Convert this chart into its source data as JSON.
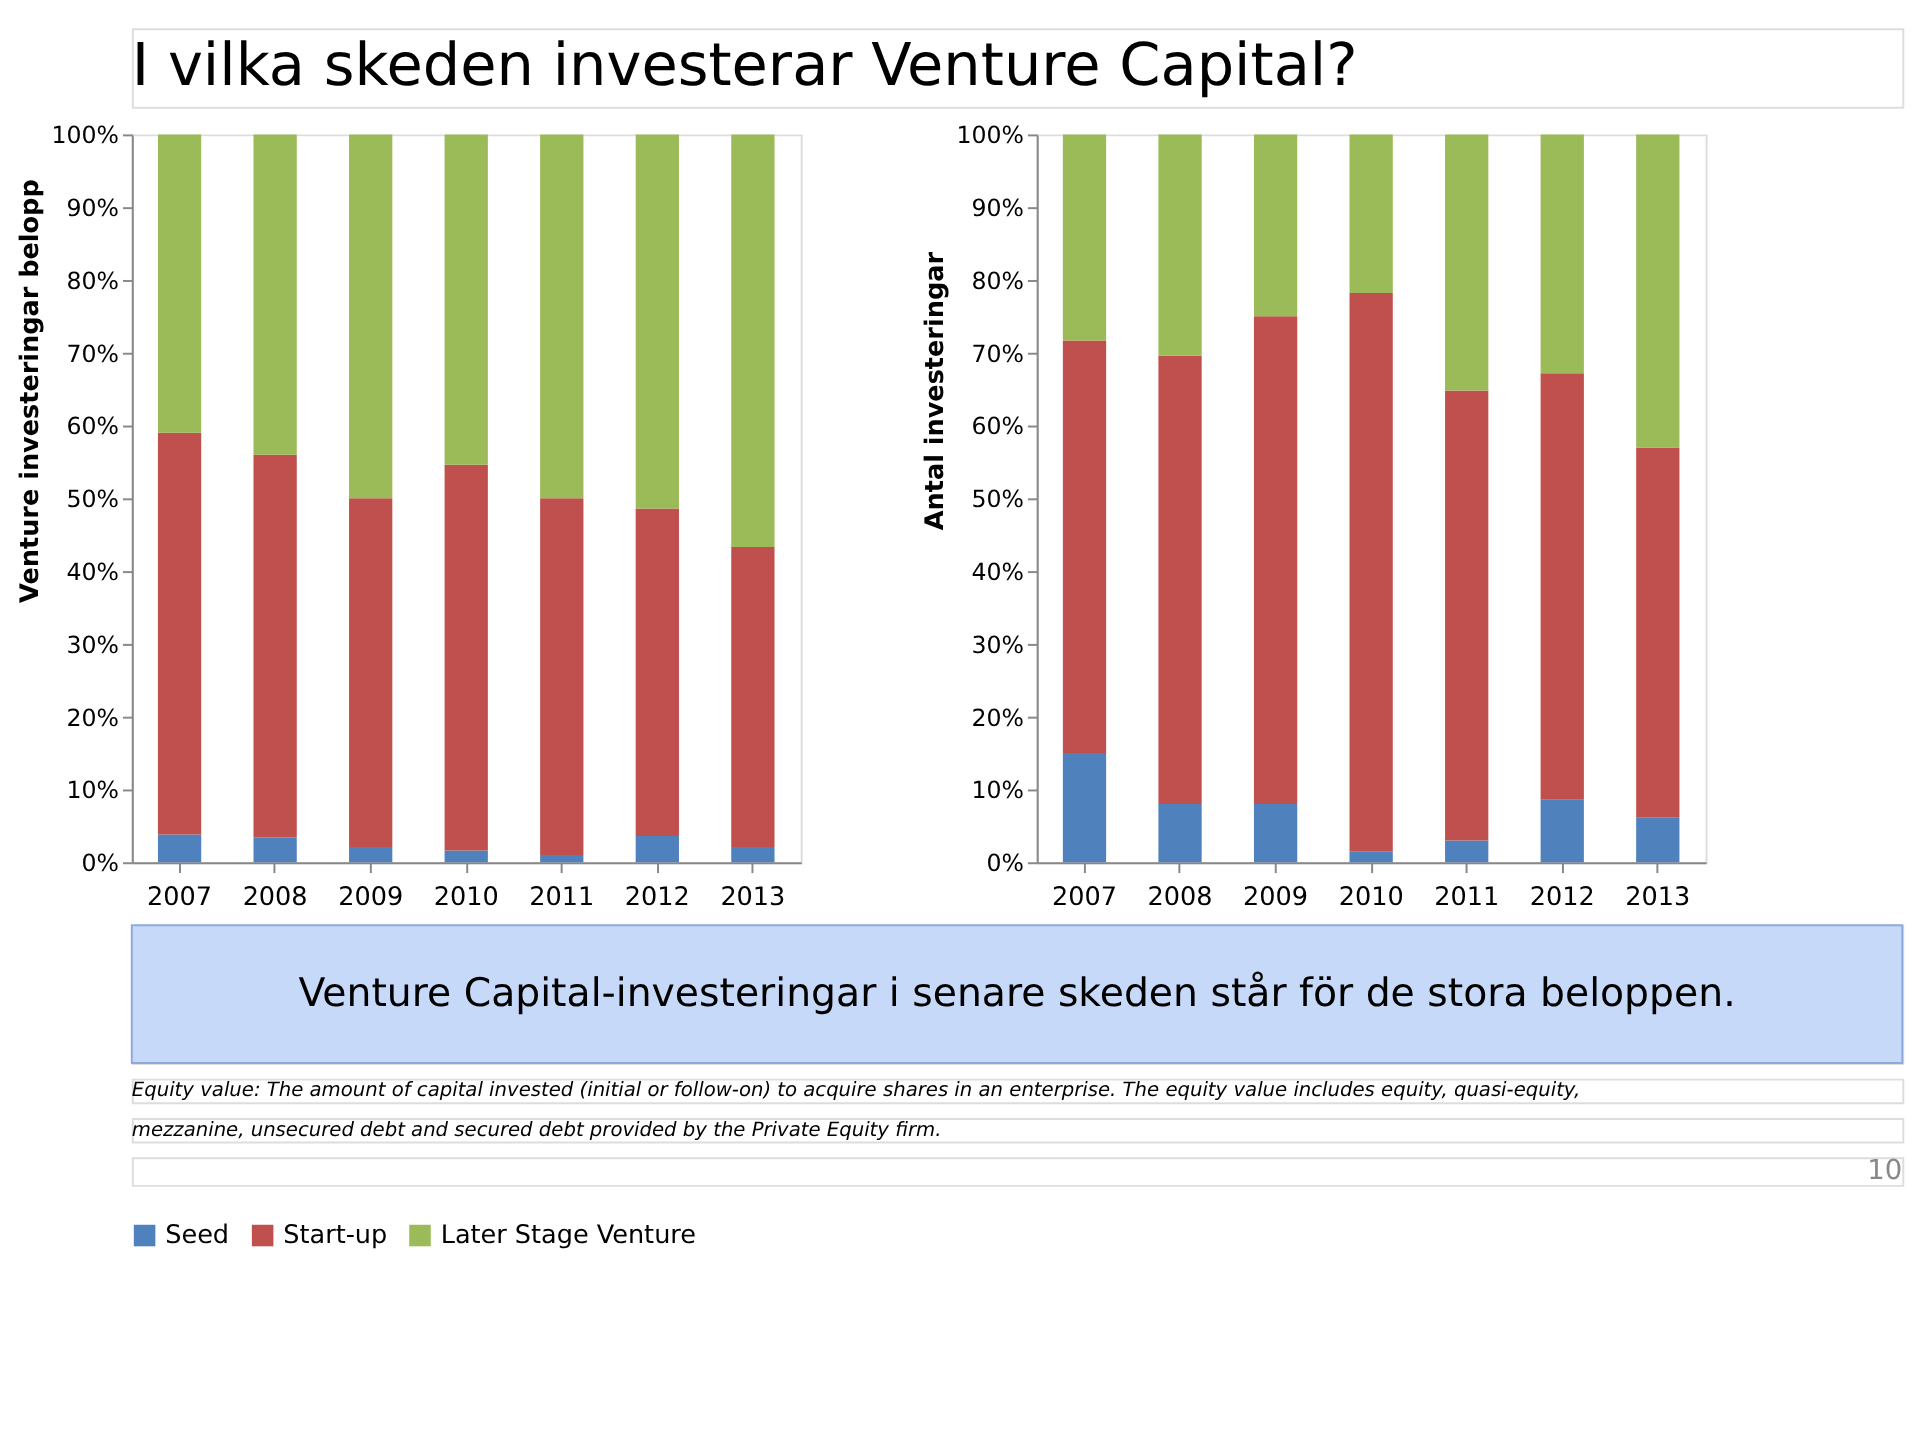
{
  "chart_data": [
    {
      "type": "bar",
      "title": "I vilka skeden investerar Venture Capital?",
      "ylabel": "Venture investeringar belopp",
      "stacked": true,
      "legend": "bottom",
      "grid": false,
      "categories": [
        "2007",
        "2008",
        "2009",
        "2010",
        "2011",
        "2012",
        "2013"
      ],
      "ylim": [
        0,
        100
      ],
      "yticks": [
        {
          "value": 0,
          "label": "0%"
        },
        {
          "value": 10,
          "label": "10%"
        },
        {
          "value": 20,
          "label": "20%"
        },
        {
          "value": 30,
          "label": "30%"
        },
        {
          "value": 40,
          "label": "40%"
        },
        {
          "value": 50,
          "label": "50%"
        },
        {
          "value": 60,
          "label": "60%"
        },
        {
          "value": 70,
          "label": "70%"
        },
        {
          "value": 80,
          "label": "80%"
        },
        {
          "value": 90,
          "label": "90%"
        },
        {
          "value": 100,
          "label": "100%"
        }
      ],
      "series": [
        {
          "name": "Seed",
          "color": "#4f81bd",
          "values": [
            3.8,
            3.4,
            2.1,
            1.6,
            1.0,
            3.6,
            2.1
          ]
        },
        {
          "name": "Start-up",
          "color": "#c0504d",
          "values": [
            55.2,
            52.6,
            47.9,
            53.0,
            49.0,
            45.0,
            41.2
          ]
        },
        {
          "name": "Later Stage Venture",
          "color": "#9bbb59",
          "values": [
            41.0,
            44.0,
            50.0,
            45.4,
            50.0,
            51.4,
            56.7
          ]
        }
      ]
    },
    {
      "type": "bar",
      "ylabel": "Antal investeringar",
      "stacked": true,
      "legend": "bottom",
      "grid": false,
      "categories": [
        "2007",
        "2008",
        "2009",
        "2010",
        "2011",
        "2012",
        "2013"
      ],
      "ylim": [
        0,
        100
      ],
      "yticks": [
        {
          "value": 0,
          "label": "0%"
        },
        {
          "value": 10,
          "label": "10%"
        },
        {
          "value": 20,
          "label": "20%"
        },
        {
          "value": 30,
          "label": "30%"
        },
        {
          "value": 40,
          "label": "40%"
        },
        {
          "value": 50,
          "label": "50%"
        },
        {
          "value": 60,
          "label": "60%"
        },
        {
          "value": 70,
          "label": "70%"
        },
        {
          "value": 80,
          "label": "80%"
        },
        {
          "value": 90,
          "label": "90%"
        },
        {
          "value": 100,
          "label": "100%"
        }
      ],
      "series": [
        {
          "name": "Seed",
          "color": "#4f81bd",
          "values": [
            15.0,
            8.0,
            8.0,
            1.5,
            3.0,
            8.6,
            6.2
          ]
        },
        {
          "name": "Start-up",
          "color": "#c0504d",
          "values": [
            56.7,
            61.6,
            67.0,
            76.7,
            61.8,
            58.6,
            50.8
          ]
        },
        {
          "name": "Later Stage Venture",
          "color": "#9bbb59",
          "values": [
            28.3,
            30.4,
            25.0,
            21.8,
            35.2,
            32.8,
            43.0
          ]
        }
      ],
      "annotations": [
        "Venture Capital-investeringar i senare skeden står för de stora beloppen.",
        "Equity value: The amount of capital invested (initial or follow-on)  to acquire shares in an enterprise.  The equity value includes equity, quasi-equity,",
        "mezzanine, unsecured debt and secured debt provided by the Private Equity  firm.",
        "10"
      ]
    }
  ]
}
